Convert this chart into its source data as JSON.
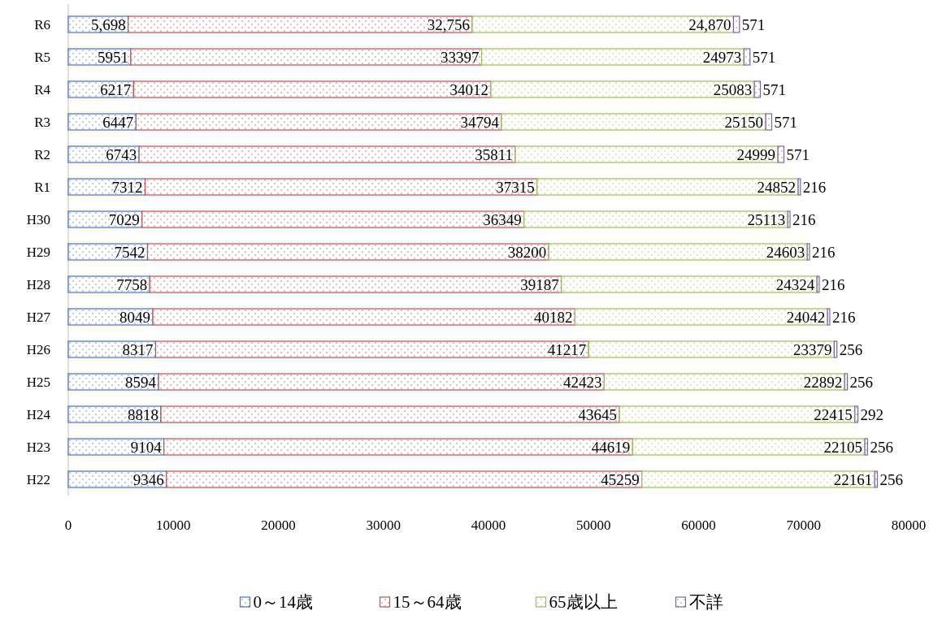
{
  "chart_data": {
    "type": "bar",
    "orientation": "horizontal",
    "stacked": true,
    "categories": [
      "R6",
      "R5",
      "R4",
      "R3",
      "R2",
      "R1",
      "H30",
      "H29",
      "H28",
      "H27",
      "H26",
      "H25",
      "H24",
      "H23",
      "H22"
    ],
    "series": [
      {
        "name": "0～14歳",
        "color": "#4472c4",
        "values": [
          5698,
          5951,
          6217,
          6447,
          6743,
          7312,
          7029,
          7542,
          7758,
          8049,
          8317,
          8594,
          8818,
          9104,
          9346
        ],
        "value_labels": [
          "5,698",
          "5951",
          "6217",
          "6447",
          "6743",
          "7312",
          "7029",
          "7542",
          "7758",
          "8049",
          "8317",
          "8594",
          "8818",
          "9104",
          "9346"
        ]
      },
      {
        "name": "15～64歳",
        "color": "#c0504d",
        "values": [
          32756,
          33397,
          34012,
          34794,
          35811,
          37315,
          36349,
          38200,
          39187,
          40182,
          41217,
          42423,
          43645,
          44619,
          45259
        ],
        "value_labels": [
          "32,756",
          "33397",
          "34012",
          "34794",
          "35811",
          "37315",
          "36349",
          "38200",
          "39187",
          "40182",
          "41217",
          "42423",
          "43645",
          "44619",
          "45259"
        ]
      },
      {
        "name": "65歳以上",
        "color": "#9bbb59",
        "values": [
          24870,
          24973,
          25083,
          25150,
          24999,
          24852,
          25113,
          24603,
          24324,
          24042,
          23379,
          22892,
          22415,
          22105,
          22161
        ],
        "value_labels": [
          "24,870",
          "24973",
          "25083",
          "25150",
          "24999",
          "24852",
          "25113",
          "24603",
          "24324",
          "24042",
          "23379",
          "22892",
          "22415",
          "22105",
          "22161"
        ]
      },
      {
        "name": "不詳",
        "color": "#8064a2",
        "values": [
          571,
          571,
          571,
          571,
          571,
          216,
          216,
          216,
          216,
          216,
          256,
          256,
          292,
          256,
          256
        ],
        "value_labels": [
          "571",
          "571",
          "571",
          "571",
          "571",
          "216",
          "216",
          "216",
          "216",
          "216",
          "256",
          "256",
          "292",
          "256",
          "256"
        ]
      }
    ],
    "xlim": [
      0,
      80000
    ],
    "xticks": [
      0,
      10000,
      20000,
      30000,
      40000,
      50000,
      60000,
      70000,
      80000
    ],
    "legend": "bottom"
  }
}
